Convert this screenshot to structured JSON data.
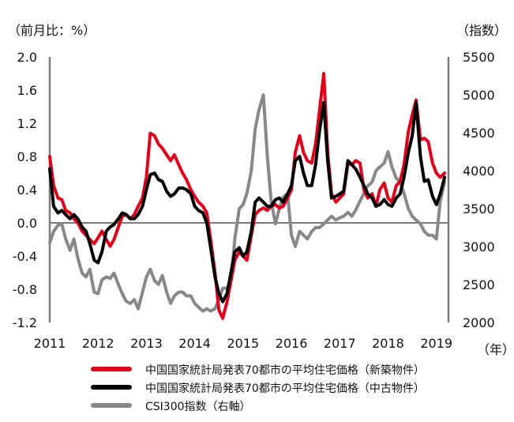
{
  "chart_data": {
    "type": "line",
    "y_left_label": "（前月比：%）",
    "y_right_label": "（指数）",
    "x_unit_label": "（年）",
    "y_left_ticks": [
      "2.0",
      "1.6",
      "1.2",
      "0.8",
      "0.4",
      "0.0",
      "-0.4",
      "-0.8",
      "-1.2"
    ],
    "y_left_range": [
      -1.2,
      2.0
    ],
    "y_right_ticks": [
      "5500",
      "5000",
      "4500",
      "4000",
      "3500",
      "3000",
      "2500",
      "2000"
    ],
    "y_right_range": [
      2000,
      5500
    ],
    "x_ticks": [
      "2011",
      "2012",
      "2013",
      "2014",
      "2015",
      "2016",
      "2017",
      "2018",
      "2019"
    ],
    "x_range": [
      2011.0,
      2019.25
    ],
    "zero_line": 0,
    "series": [
      {
        "name": "中国国家統計局発表70都市の平均住宅価格（新築物件）",
        "axis": "left",
        "color": "#e0001b",
        "points": [
          [
            2011.0,
            0.8
          ],
          [
            2011.08,
            0.45
          ],
          [
            2011.17,
            0.3
          ],
          [
            2011.25,
            0.28
          ],
          [
            2011.33,
            0.15
          ],
          [
            2011.42,
            0.12
          ],
          [
            2011.5,
            0.05
          ],
          [
            2011.58,
            0.0
          ],
          [
            2011.67,
            -0.1
          ],
          [
            2011.75,
            -0.15
          ],
          [
            2011.83,
            -0.2
          ],
          [
            2011.92,
            -0.25
          ],
          [
            2012.0,
            -0.18
          ],
          [
            2012.08,
            -0.1
          ],
          [
            2012.17,
            -0.2
          ],
          [
            2012.25,
            -0.28
          ],
          [
            2012.33,
            -0.2
          ],
          [
            2012.42,
            -0.05
          ],
          [
            2012.5,
            0.08
          ],
          [
            2012.58,
            0.1
          ],
          [
            2012.67,
            0.05
          ],
          [
            2012.75,
            0.1
          ],
          [
            2012.83,
            0.2
          ],
          [
            2012.92,
            0.3
          ],
          [
            2013.0,
            0.55
          ],
          [
            2013.08,
            1.08
          ],
          [
            2013.17,
            1.05
          ],
          [
            2013.25,
            0.95
          ],
          [
            2013.33,
            0.9
          ],
          [
            2013.42,
            0.82
          ],
          [
            2013.5,
            0.75
          ],
          [
            2013.58,
            0.82
          ],
          [
            2013.67,
            0.7
          ],
          [
            2013.75,
            0.6
          ],
          [
            2013.83,
            0.52
          ],
          [
            2013.92,
            0.4
          ],
          [
            2014.0,
            0.32
          ],
          [
            2014.08,
            0.25
          ],
          [
            2014.17,
            0.2
          ],
          [
            2014.25,
            0.12
          ],
          [
            2014.33,
            -0.2
          ],
          [
            2014.42,
            -0.6
          ],
          [
            2014.5,
            -1.05
          ],
          [
            2014.58,
            -1.15
          ],
          [
            2014.67,
            -0.95
          ],
          [
            2014.75,
            -0.7
          ],
          [
            2014.83,
            -0.45
          ],
          [
            2014.92,
            -0.35
          ],
          [
            2015.0,
            -0.4
          ],
          [
            2015.08,
            -0.45
          ],
          [
            2015.17,
            -0.15
          ],
          [
            2015.25,
            0.1
          ],
          [
            2015.33,
            0.15
          ],
          [
            2015.42,
            0.18
          ],
          [
            2015.5,
            0.15
          ],
          [
            2015.58,
            0.2
          ],
          [
            2015.67,
            0.22
          ],
          [
            2015.75,
            0.18
          ],
          [
            2015.83,
            0.2
          ],
          [
            2015.92,
            0.3
          ],
          [
            2016.0,
            0.4
          ],
          [
            2016.08,
            0.85
          ],
          [
            2016.17,
            1.05
          ],
          [
            2016.25,
            0.85
          ],
          [
            2016.33,
            0.75
          ],
          [
            2016.42,
            0.72
          ],
          [
            2016.5,
            0.95
          ],
          [
            2016.58,
            1.35
          ],
          [
            2016.67,
            1.8
          ],
          [
            2016.75,
            0.85
          ],
          [
            2016.83,
            0.35
          ],
          [
            2016.92,
            0.25
          ],
          [
            2017.0,
            0.3
          ],
          [
            2017.08,
            0.35
          ],
          [
            2017.17,
            0.72
          ],
          [
            2017.25,
            0.7
          ],
          [
            2017.33,
            0.75
          ],
          [
            2017.42,
            0.72
          ],
          [
            2017.5,
            0.4
          ],
          [
            2017.58,
            0.3
          ],
          [
            2017.67,
            0.35
          ],
          [
            2017.75,
            0.2
          ],
          [
            2017.83,
            0.4
          ],
          [
            2017.92,
            0.48
          ],
          [
            2018.0,
            0.3
          ],
          [
            2018.08,
            0.25
          ],
          [
            2018.17,
            0.45
          ],
          [
            2018.25,
            0.5
          ],
          [
            2018.33,
            0.7
          ],
          [
            2018.42,
            1.1
          ],
          [
            2018.5,
            1.3
          ],
          [
            2018.58,
            1.48
          ],
          [
            2018.67,
            1.0
          ],
          [
            2018.75,
            1.02
          ],
          [
            2018.83,
            0.98
          ],
          [
            2018.92,
            0.72
          ],
          [
            2019.0,
            0.6
          ],
          [
            2019.08,
            0.55
          ],
          [
            2019.17,
            0.6
          ]
        ]
      },
      {
        "name": "中国国家統計局発表70都市の平均住宅価格（中古物件）",
        "axis": "left",
        "color": "#000000",
        "points": [
          [
            2011.0,
            0.65
          ],
          [
            2011.08,
            0.2
          ],
          [
            2011.17,
            0.12
          ],
          [
            2011.25,
            0.15
          ],
          [
            2011.33,
            0.1
          ],
          [
            2011.42,
            0.05
          ],
          [
            2011.5,
            0.1
          ],
          [
            2011.58,
            0.05
          ],
          [
            2011.67,
            -0.05
          ],
          [
            2011.75,
            -0.1
          ],
          [
            2011.83,
            -0.25
          ],
          [
            2011.92,
            -0.45
          ],
          [
            2012.0,
            -0.48
          ],
          [
            2012.08,
            -0.35
          ],
          [
            2012.17,
            -0.1
          ],
          [
            2012.25,
            -0.05
          ],
          [
            2012.33,
            -0.02
          ],
          [
            2012.42,
            0.05
          ],
          [
            2012.5,
            0.12
          ],
          [
            2012.58,
            0.1
          ],
          [
            2012.67,
            0.05
          ],
          [
            2012.75,
            0.05
          ],
          [
            2012.83,
            0.1
          ],
          [
            2012.92,
            0.2
          ],
          [
            2013.0,
            0.4
          ],
          [
            2013.08,
            0.58
          ],
          [
            2013.17,
            0.6
          ],
          [
            2013.25,
            0.52
          ],
          [
            2013.33,
            0.5
          ],
          [
            2013.42,
            0.38
          ],
          [
            2013.5,
            0.32
          ],
          [
            2013.58,
            0.35
          ],
          [
            2013.67,
            0.42
          ],
          [
            2013.75,
            0.42
          ],
          [
            2013.83,
            0.4
          ],
          [
            2013.92,
            0.35
          ],
          [
            2014.0,
            0.2
          ],
          [
            2014.08,
            0.15
          ],
          [
            2014.17,
            0.12
          ],
          [
            2014.25,
            0.0
          ],
          [
            2014.33,
            -0.3
          ],
          [
            2014.42,
            -0.65
          ],
          [
            2014.5,
            -0.85
          ],
          [
            2014.58,
            -0.95
          ],
          [
            2014.67,
            -0.85
          ],
          [
            2014.75,
            -0.6
          ],
          [
            2014.83,
            -0.35
          ],
          [
            2014.92,
            -0.3
          ],
          [
            2015.0,
            -0.4
          ],
          [
            2015.08,
            -0.35
          ],
          [
            2015.17,
            -0.1
          ],
          [
            2015.25,
            0.25
          ],
          [
            2015.33,
            0.3
          ],
          [
            2015.42,
            0.25
          ],
          [
            2015.5,
            0.2
          ],
          [
            2015.58,
            0.2
          ],
          [
            2015.67,
            0.28
          ],
          [
            2015.75,
            0.3
          ],
          [
            2015.83,
            0.25
          ],
          [
            2015.92,
            0.35
          ],
          [
            2016.0,
            0.45
          ],
          [
            2016.08,
            0.75
          ],
          [
            2016.17,
            0.8
          ],
          [
            2016.25,
            0.6
          ],
          [
            2016.33,
            0.45
          ],
          [
            2016.42,
            0.45
          ],
          [
            2016.5,
            0.7
          ],
          [
            2016.58,
            1.1
          ],
          [
            2016.67,
            1.45
          ],
          [
            2016.75,
            0.75
          ],
          [
            2016.83,
            0.3
          ],
          [
            2016.92,
            0.32
          ],
          [
            2017.0,
            0.35
          ],
          [
            2017.08,
            0.38
          ],
          [
            2017.17,
            0.75
          ],
          [
            2017.25,
            0.7
          ],
          [
            2017.33,
            0.65
          ],
          [
            2017.42,
            0.55
          ],
          [
            2017.5,
            0.45
          ],
          [
            2017.58,
            0.35
          ],
          [
            2017.67,
            0.3
          ],
          [
            2017.75,
            0.2
          ],
          [
            2017.83,
            0.22
          ],
          [
            2017.92,
            0.28
          ],
          [
            2018.0,
            0.22
          ],
          [
            2018.08,
            0.2
          ],
          [
            2018.17,
            0.3
          ],
          [
            2018.25,
            0.35
          ],
          [
            2018.33,
            0.55
          ],
          [
            2018.42,
            0.85
          ],
          [
            2018.5,
            1.05
          ],
          [
            2018.58,
            1.45
          ],
          [
            2018.67,
            0.8
          ],
          [
            2018.75,
            0.5
          ],
          [
            2018.83,
            0.52
          ],
          [
            2018.92,
            0.32
          ],
          [
            2019.0,
            0.22
          ],
          [
            2019.08,
            0.35
          ],
          [
            2019.17,
            0.55
          ]
        ]
      },
      {
        "name": "CSI300指数（右軸）",
        "axis": "right",
        "color": "#888888",
        "points": [
          [
            2011.0,
            3050
          ],
          [
            2011.08,
            3200
          ],
          [
            2011.17,
            3280
          ],
          [
            2011.25,
            3300
          ],
          [
            2011.33,
            3100
          ],
          [
            2011.42,
            2950
          ],
          [
            2011.5,
            3100
          ],
          [
            2011.58,
            2850
          ],
          [
            2011.67,
            2650
          ],
          [
            2011.75,
            2600
          ],
          [
            2011.83,
            2700
          ],
          [
            2011.92,
            2400
          ],
          [
            2012.0,
            2380
          ],
          [
            2012.08,
            2560
          ],
          [
            2012.17,
            2600
          ],
          [
            2012.25,
            2580
          ],
          [
            2012.33,
            2650
          ],
          [
            2012.42,
            2500
          ],
          [
            2012.5,
            2380
          ],
          [
            2012.58,
            2280
          ],
          [
            2012.67,
            2250
          ],
          [
            2012.75,
            2300
          ],
          [
            2012.83,
            2180
          ],
          [
            2012.92,
            2400
          ],
          [
            2013.0,
            2600
          ],
          [
            2013.08,
            2700
          ],
          [
            2013.17,
            2550
          ],
          [
            2013.25,
            2500
          ],
          [
            2013.33,
            2620
          ],
          [
            2013.42,
            2400
          ],
          [
            2013.5,
            2250
          ],
          [
            2013.58,
            2350
          ],
          [
            2013.67,
            2400
          ],
          [
            2013.75,
            2400
          ],
          [
            2013.83,
            2350
          ],
          [
            2013.92,
            2350
          ],
          [
            2014.0,
            2250
          ],
          [
            2014.08,
            2200
          ],
          [
            2014.17,
            2150
          ],
          [
            2014.25,
            2180
          ],
          [
            2014.33,
            2150
          ],
          [
            2014.42,
            2180
          ],
          [
            2014.5,
            2300
          ],
          [
            2014.58,
            2450
          ],
          [
            2014.67,
            2450
          ],
          [
            2014.75,
            2550
          ],
          [
            2014.83,
            3100
          ],
          [
            2014.92,
            3500
          ],
          [
            2015.0,
            3550
          ],
          [
            2015.08,
            3700
          ],
          [
            2015.17,
            4000
          ],
          [
            2015.25,
            4550
          ],
          [
            2015.33,
            4800
          ],
          [
            2015.42,
            5000
          ],
          [
            2015.5,
            4200
          ],
          [
            2015.58,
            3600
          ],
          [
            2015.67,
            3300
          ],
          [
            2015.75,
            3500
          ],
          [
            2015.83,
            3650
          ],
          [
            2015.92,
            3700
          ],
          [
            2016.0,
            3150
          ],
          [
            2016.08,
            3000
          ],
          [
            2016.17,
            3200
          ],
          [
            2016.25,
            3150
          ],
          [
            2016.33,
            3100
          ],
          [
            2016.42,
            3200
          ],
          [
            2016.5,
            3250
          ],
          [
            2016.58,
            3250
          ],
          [
            2016.67,
            3300
          ],
          [
            2016.75,
            3350
          ],
          [
            2016.83,
            3400
          ],
          [
            2016.92,
            3350
          ],
          [
            2017.0,
            3380
          ],
          [
            2017.08,
            3400
          ],
          [
            2017.17,
            3450
          ],
          [
            2017.25,
            3400
          ],
          [
            2017.33,
            3480
          ],
          [
            2017.42,
            3600
          ],
          [
            2017.5,
            3700
          ],
          [
            2017.58,
            3800
          ],
          [
            2017.67,
            3850
          ],
          [
            2017.75,
            4000
          ],
          [
            2017.83,
            4050
          ],
          [
            2017.92,
            4100
          ],
          [
            2018.0,
            4250
          ],
          [
            2018.08,
            4050
          ],
          [
            2018.17,
            3900
          ],
          [
            2018.25,
            3850
          ],
          [
            2018.33,
            3700
          ],
          [
            2018.42,
            3500
          ],
          [
            2018.5,
            3400
          ],
          [
            2018.58,
            3350
          ],
          [
            2018.67,
            3300
          ],
          [
            2018.75,
            3200
          ],
          [
            2018.83,
            3150
          ],
          [
            2018.92,
            3150
          ],
          [
            2019.0,
            3100
          ],
          [
            2019.08,
            3600
          ],
          [
            2019.17,
            3850
          ]
        ]
      }
    ]
  }
}
